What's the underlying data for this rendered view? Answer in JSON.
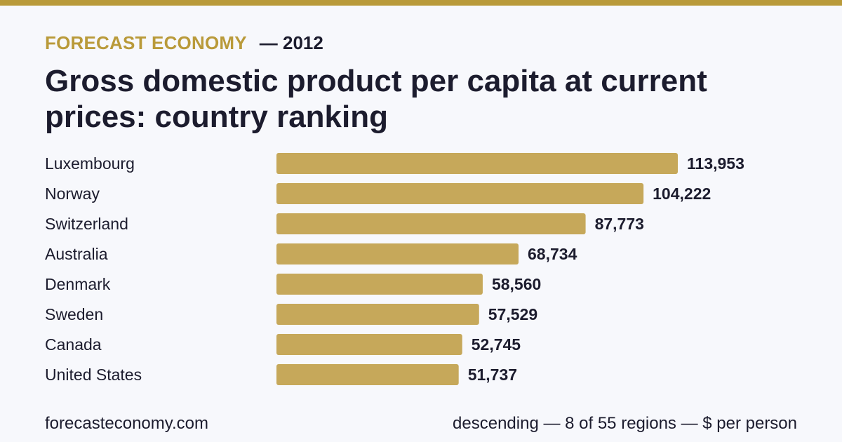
{
  "header": {
    "brand": "FORECAST ECONOMY",
    "year": "— 2012"
  },
  "footer": {
    "site": "forecasteconomy.com",
    "note": "descending — 8 of 55 regions — $ per person"
  },
  "colors": {
    "accent": "#b99a3a",
    "bar": "#c6a85a",
    "text": "#1c1c2e",
    "background": "#f7f8fc"
  },
  "chart_data": {
    "type": "bar",
    "orientation": "horizontal",
    "title": "Gross domestic product per capita at current prices: country ranking",
    "categories": [
      "Luxembourg",
      "Norway",
      "Switzerland",
      "Australia",
      "Denmark",
      "Sweden",
      "Canada",
      "United States"
    ],
    "values": [
      113953,
      104222,
      87773,
      68734,
      58560,
      57529,
      52745,
      51737
    ],
    "value_labels": [
      "113,953",
      "104,222",
      "87,773",
      "68,734",
      "58,560",
      "57,529",
      "52,745",
      "51,737"
    ],
    "xlabel": "",
    "ylabel": "",
    "xlim": [
      0,
      113953
    ],
    "grid": false,
    "legend": "none"
  }
}
